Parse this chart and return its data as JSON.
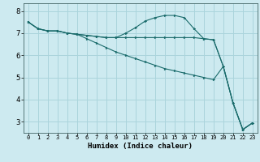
{
  "xlabel": "Humidex (Indice chaleur)",
  "background_color": "#cdeaf0",
  "grid_color": "#aad4dc",
  "line_color": "#1a6b6b",
  "xlim": [
    -0.5,
    23.5
  ],
  "ylim": [
    2.5,
    8.35
  ],
  "yticks": [
    3,
    4,
    5,
    6,
    7,
    8
  ],
  "x_labels": [
    "0",
    "1",
    "2",
    "3",
    "4",
    "5",
    "6",
    "7",
    "8",
    "9",
    "10",
    "11",
    "12",
    "13",
    "14",
    "15",
    "16",
    "17",
    "18",
    "19",
    "20",
    "21",
    "22",
    "23"
  ],
  "series": [
    [
      7.5,
      7.2,
      7.1,
      7.1,
      7.0,
      6.95,
      6.9,
      6.85,
      6.8,
      6.8,
      7.0,
      7.25,
      7.55,
      7.7,
      7.8,
      7.8,
      7.7,
      7.2,
      6.75,
      6.7,
      5.5,
      3.85,
      2.65,
      2.95
    ],
    [
      7.5,
      7.2,
      7.1,
      7.1,
      7.0,
      6.95,
      6.9,
      6.85,
      6.8,
      6.8,
      6.8,
      6.8,
      6.8,
      6.8,
      6.8,
      6.8,
      6.8,
      6.8,
      6.75,
      6.7,
      5.5,
      3.85,
      2.65,
      2.95
    ],
    [
      7.5,
      7.2,
      7.1,
      7.1,
      7.0,
      6.95,
      6.75,
      6.55,
      6.35,
      6.15,
      6.0,
      5.85,
      5.7,
      5.55,
      5.4,
      5.3,
      5.2,
      5.1,
      5.0,
      4.9,
      5.5,
      3.85,
      2.65,
      2.95
    ]
  ]
}
